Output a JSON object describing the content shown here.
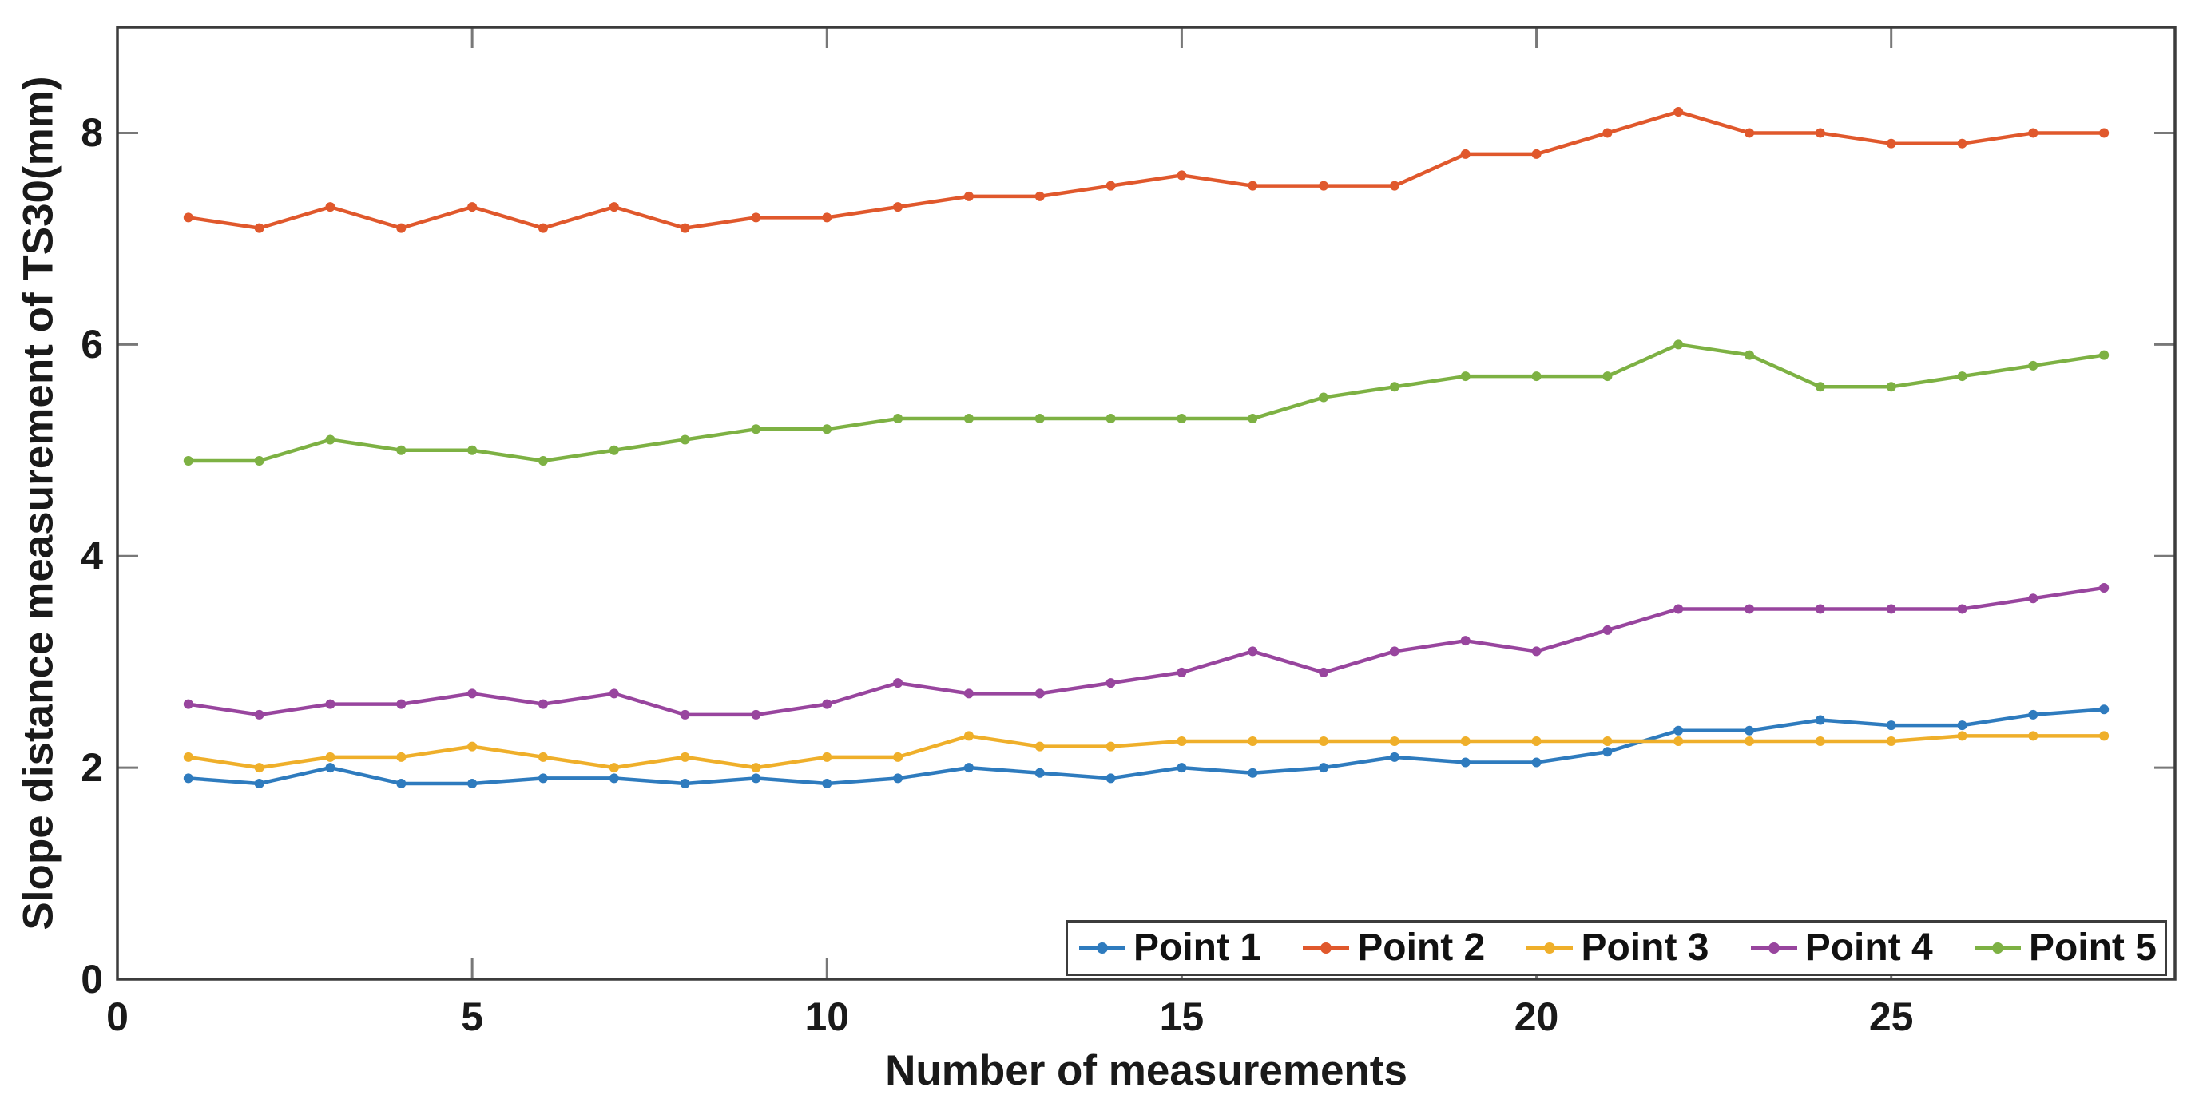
{
  "figure": {
    "background": "#ffffff",
    "frame_color": "#3c3c3c",
    "tick_color": "#787878",
    "text_color": "#1a1a1a"
  },
  "x_axis": {
    "label": "Number of measurements",
    "tick_labels": [
      "0",
      "5",
      "10",
      "15",
      "20",
      "25"
    ],
    "tick_values": [
      0,
      5,
      10,
      15,
      20,
      25
    ],
    "range": [
      0,
      29
    ]
  },
  "y_axis": {
    "label": "Slope distance measurement of TS30(mm)",
    "tick_labels": [
      "0",
      "2",
      "4",
      "6",
      "8"
    ],
    "tick_values": [
      0,
      2,
      4,
      6,
      8
    ],
    "range": [
      0,
      9
    ]
  },
  "legend": {
    "position": "bottom-right",
    "entries": [
      {
        "label": "Point 1",
        "color": "#2e7bbe"
      },
      {
        "label": "Point 2",
        "color": "#e0582c"
      },
      {
        "label": "Point 3",
        "color": "#efaf2a"
      },
      {
        "label": "Point 4",
        "color": "#98459e"
      },
      {
        "label": "Point 5",
        "color": "#7db143"
      }
    ]
  },
  "chart_data": {
    "type": "line",
    "title": "",
    "xlabel": "Number of measurements",
    "ylabel": "Slope distance measurement of TS30(mm)",
    "xlim": [
      0,
      29
    ],
    "ylim": [
      0,
      9
    ],
    "grid": false,
    "marker": "dot",
    "legend_position": "south-east-inside",
    "x": [
      1,
      2,
      3,
      4,
      5,
      6,
      7,
      8,
      9,
      10,
      11,
      12,
      13,
      14,
      15,
      16,
      17,
      18,
      19,
      20,
      21,
      22,
      23,
      24,
      25,
      26,
      27,
      28
    ],
    "series": [
      {
        "name": "Point 1",
        "color": "#2e7bbe",
        "values": [
          1.9,
          1.85,
          2.0,
          1.85,
          1.85,
          1.9,
          1.9,
          1.85,
          1.9,
          1.85,
          1.9,
          2.0,
          1.95,
          1.9,
          2.0,
          1.95,
          2.0,
          2.1,
          2.05,
          2.05,
          2.15,
          2.35,
          2.35,
          2.45,
          2.4,
          2.4,
          2.5,
          2.55
        ]
      },
      {
        "name": "Point 2",
        "color": "#e0582c",
        "values": [
          7.2,
          7.1,
          7.3,
          7.1,
          7.3,
          7.1,
          7.3,
          7.1,
          7.2,
          7.2,
          7.3,
          7.4,
          7.4,
          7.5,
          7.6,
          7.5,
          7.5,
          7.5,
          7.8,
          7.8,
          8.0,
          8.2,
          8.0,
          8.0,
          7.9,
          7.9,
          8.0,
          8.0
        ]
      },
      {
        "name": "Point 3",
        "color": "#efaf2a",
        "values": [
          2.1,
          2.0,
          2.1,
          2.1,
          2.2,
          2.1,
          2.0,
          2.1,
          2.0,
          2.1,
          2.1,
          2.3,
          2.2,
          2.2,
          2.25,
          2.25,
          2.25,
          2.25,
          2.25,
          2.25,
          2.25,
          2.25,
          2.25,
          2.25,
          2.25,
          2.3,
          2.3,
          2.3
        ]
      },
      {
        "name": "Point 4",
        "color": "#98459e",
        "values": [
          2.6,
          2.5,
          2.6,
          2.6,
          2.7,
          2.6,
          2.7,
          2.5,
          2.5,
          2.6,
          2.8,
          2.7,
          2.7,
          2.8,
          2.9,
          3.1,
          2.9,
          3.1,
          3.2,
          3.1,
          3.3,
          3.5,
          3.5,
          3.5,
          3.5,
          3.5,
          3.6,
          3.7
        ]
      },
      {
        "name": "Point 5",
        "color": "#7db143",
        "values": [
          4.9,
          4.9,
          5.1,
          5.0,
          5.0,
          4.9,
          5.0,
          5.1,
          5.2,
          5.2,
          5.3,
          5.3,
          5.3,
          5.3,
          5.3,
          5.3,
          5.5,
          5.6,
          5.7,
          5.7,
          5.7,
          6.0,
          5.9,
          5.6,
          5.6,
          5.7,
          5.8,
          5.9
        ]
      }
    ]
  }
}
